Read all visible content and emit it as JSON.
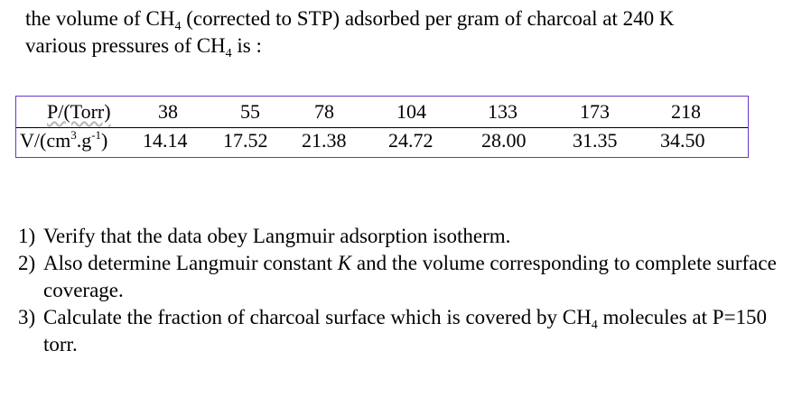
{
  "intro": {
    "line1_a": "the volume of CH",
    "line1_sub": "4",
    "line1_b": " (corrected to STP) adsorbed per gram of charcoal at 240 K",
    "line2_a": "various pressures of CH",
    "line2_sub": "4",
    "line2_b": " is :"
  },
  "table": {
    "row1_label": "P/(Torr)",
    "row2_label_a": "V/(cm",
    "row2_label_sup1": "3",
    "row2_label_b": ".g",
    "row2_label_sup2": "-1",
    "row2_label_c": ")",
    "pressures": [
      "38",
      "55",
      "78",
      "104",
      "133",
      "173",
      "218"
    ],
    "volumes": [
      "14.14",
      "17.52",
      "21.38",
      "24.72",
      "28.00",
      "31.35",
      "34.50"
    ]
  },
  "questions": {
    "q1_num": "1)",
    "q1_text": "Verify that the data obey Langmuir adsorption isotherm.",
    "q2_num": "2)",
    "q2_a": "Also determine Langmuir constant ",
    "q2_k": "K",
    "q2_b": " and the volume corresponding to complete surface coverage.",
    "q3_num": "3)",
    "q3_a": "Calculate the  fraction of charcoal surface which is covered by CH",
    "q3_sub": "4",
    "q3_b": " molecules at P=150 torr."
  }
}
